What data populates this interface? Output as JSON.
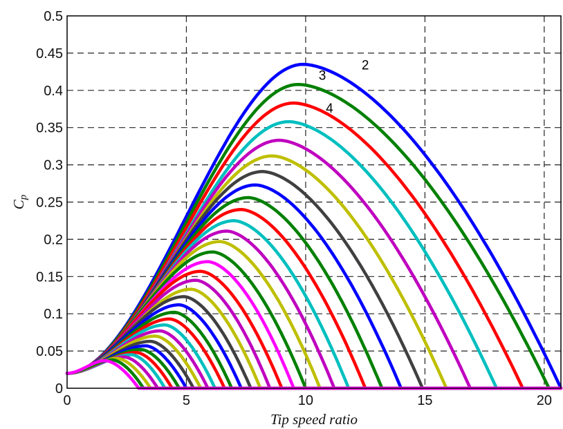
{
  "chart_data": {
    "type": "line",
    "title": "",
    "xlabel": "Tip speed ratio",
    "ylabel": "Cp",
    "xlim": [
      0,
      20.7
    ],
    "ylim": [
      0,
      0.5
    ],
    "grid": true,
    "legend": "none",
    "x_ticks": [
      "0",
      "5",
      "10",
      "15",
      "20"
    ],
    "y_ticks": [
      "0",
      "0.05",
      "0.1",
      "0.15",
      "0.2",
      "0.25",
      "0.3",
      "0.35",
      "0.4",
      "0.45",
      "0.5"
    ],
    "annotations": [
      {
        "text": "2",
        "x": 12.5,
        "y": 0.428
      },
      {
        "text": "3",
        "x": 10.7,
        "y": 0.414
      },
      {
        "text": "4",
        "x": 11.0,
        "y": 0.37
      }
    ],
    "series": [
      {
        "color": "#0000ff",
        "peak_x": 9.9,
        "peak_y": 0.435,
        "end_x": 20.7
      },
      {
        "color": "#008000",
        "peak_x": 9.7,
        "peak_y": 0.408,
        "end_x": 20.2
      },
      {
        "color": "#ff0000",
        "peak_x": 9.5,
        "peak_y": 0.383,
        "end_x": 19.1
      },
      {
        "color": "#00bfbf",
        "peak_x": 9.3,
        "peak_y": 0.358,
        "end_x": 18.0
      },
      {
        "color": "#bf00bf",
        "peak_x": 8.9,
        "peak_y": 0.333,
        "end_x": 16.9
      },
      {
        "color": "#bfbf00",
        "peak_x": 8.6,
        "peak_y": 0.312,
        "end_x": 15.9
      },
      {
        "color": "#404040",
        "peak_x": 8.2,
        "peak_y": 0.291,
        "end_x": 14.9
      },
      {
        "color": "#0000ff",
        "peak_x": 7.9,
        "peak_y": 0.273,
        "end_x": 14.0
      },
      {
        "color": "#008000",
        "peak_x": 7.6,
        "peak_y": 0.256,
        "end_x": 13.2
      },
      {
        "color": "#ff0000",
        "peak_x": 7.3,
        "peak_y": 0.24,
        "end_x": 12.5
      },
      {
        "color": "#00bfbf",
        "peak_x": 7.0,
        "peak_y": 0.225,
        "end_x": 11.8
      },
      {
        "color": "#bf00bf",
        "peak_x": 6.7,
        "peak_y": 0.211,
        "end_x": 11.2
      },
      {
        "color": "#bfbf00",
        "peak_x": 6.4,
        "peak_y": 0.197,
        "end_x": 10.6
      },
      {
        "color": "#008000",
        "peak_x": 6.1,
        "peak_y": 0.183,
        "end_x": 10.0
      },
      {
        "color": "#ff00ff",
        "peak_x": 5.9,
        "peak_y": 0.17,
        "end_x": 9.5
      },
      {
        "color": "#ff0000",
        "peak_x": 5.6,
        "peak_y": 0.157,
        "end_x": 9.0
      },
      {
        "color": "#bf00bf",
        "peak_x": 5.4,
        "peak_y": 0.145,
        "end_x": 8.5
      },
      {
        "color": "#bfbf00",
        "peak_x": 5.2,
        "peak_y": 0.133,
        "end_x": 8.1
      },
      {
        "color": "#404040",
        "peak_x": 4.9,
        "peak_y": 0.123,
        "end_x": 7.7
      },
      {
        "color": "#0000ff",
        "peak_x": 4.7,
        "peak_y": 0.112,
        "end_x": 7.3
      },
      {
        "color": "#008000",
        "peak_x": 4.5,
        "peak_y": 0.102,
        "end_x": 6.9
      },
      {
        "color": "#ff0000",
        "peak_x": 4.3,
        "peak_y": 0.093,
        "end_x": 6.6
      },
      {
        "color": "#00bfbf",
        "peak_x": 4.1,
        "peak_y": 0.085,
        "end_x": 6.2
      },
      {
        "color": "#bf00bf",
        "peak_x": 3.9,
        "peak_y": 0.077,
        "end_x": 5.9
      },
      {
        "color": "#bfbf00",
        "peak_x": 3.7,
        "peak_y": 0.07,
        "end_x": 5.6
      },
      {
        "color": "#404040",
        "peak_x": 3.5,
        "peak_y": 0.063,
        "end_x": 5.3
      },
      {
        "color": "#0000ff",
        "peak_x": 3.3,
        "peak_y": 0.057,
        "end_x": 5.0
      },
      {
        "color": "#008000",
        "peak_x": 3.1,
        "peak_y": 0.052,
        "end_x": 4.7
      },
      {
        "color": "#ff0000",
        "peak_x": 2.9,
        "peak_y": 0.048,
        "end_x": 4.4
      },
      {
        "color": "#00bfbf",
        "peak_x": 2.7,
        "peak_y": 0.045,
        "end_x": 4.1
      },
      {
        "color": "#bf00bf",
        "peak_x": 2.4,
        "peak_y": 0.042,
        "end_x": 3.8
      },
      {
        "color": "#bfbf00",
        "peak_x": 2.1,
        "peak_y": 0.04,
        "end_x": 3.5
      },
      {
        "color": "#008000",
        "peak_x": 1.9,
        "peak_y": 0.038,
        "end_x": 3.2
      },
      {
        "color": "#ff00ff",
        "peak_x": 1.6,
        "peak_y": 0.037,
        "end_x": 3.0
      }
    ]
  }
}
